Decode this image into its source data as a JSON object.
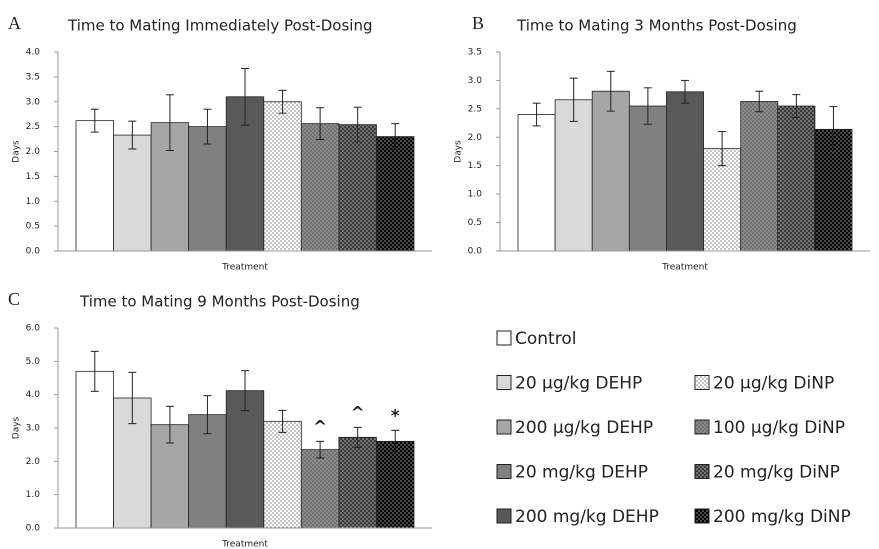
{
  "chart_data": [
    {
      "type": "bar",
      "panel": "A",
      "title": "Time to Mating Immediately Post-Dosing",
      "xlabel": "Treatment",
      "ylabel": "Days",
      "values": [
        2.62,
        2.33,
        2.58,
        2.5,
        3.1,
        3.0,
        2.56,
        2.54,
        2.3
      ],
      "errors": [
        0.23,
        0.28,
        0.56,
        0.35,
        0.57,
        0.23,
        0.32,
        0.35,
        0.26
      ],
      "ylim": [
        0,
        4
      ],
      "yticks": [
        {
          "value": 0,
          "label": "0.0"
        },
        {
          "value": 0.5,
          "label": "0.5"
        },
        {
          "value": 1,
          "label": "1.0"
        },
        {
          "value": 1.5,
          "label": "1.5"
        },
        {
          "value": 2,
          "label": "2.0"
        },
        {
          "value": 2.5,
          "label": "2.5"
        },
        {
          "value": 3,
          "label": "3.0"
        },
        {
          "value": 3.5,
          "label": "3.5"
        },
        {
          "value": 4,
          "label": "4.0"
        }
      ]
    },
    {
      "type": "bar",
      "panel": "B",
      "title": "Time to Mating 3 Months Post-Dosing",
      "xlabel": "Treatment",
      "ylabel": "Days",
      "values": [
        2.4,
        2.66,
        2.81,
        2.55,
        2.8,
        1.8,
        2.63,
        2.55,
        2.14
      ],
      "errors": [
        0.2,
        0.38,
        0.35,
        0.32,
        0.2,
        0.3,
        0.18,
        0.2,
        0.4
      ],
      "ylim": [
        0,
        3.5
      ],
      "yticks": [
        {
          "value": 0,
          "label": "0.0"
        },
        {
          "value": 0.5,
          "label": "0.5"
        },
        {
          "value": 1,
          "label": "1.0"
        },
        {
          "value": 1.5,
          "label": "1.5"
        },
        {
          "value": 2,
          "label": "2.0"
        },
        {
          "value": 2.5,
          "label": "2.5"
        },
        {
          "value": 3,
          "label": "3.0"
        },
        {
          "value": 3.5,
          "label": "3.5"
        }
      ]
    },
    {
      "type": "bar",
      "panel": "C",
      "title": "Time to Mating 9 Months Post-Dosing",
      "xlabel": "Treatment",
      "ylabel": "Days",
      "values": [
        4.7,
        3.9,
        3.1,
        3.4,
        4.12,
        3.2,
        2.35,
        2.72,
        2.6
      ],
      "errors": [
        0.6,
        0.77,
        0.55,
        0.57,
        0.6,
        0.33,
        0.25,
        0.3,
        0.33
      ],
      "annotations": [
        {
          "index": 6,
          "text": "^"
        },
        {
          "index": 7,
          "text": "^"
        },
        {
          "index": 8,
          "text": "*"
        }
      ],
      "ylim": [
        0,
        6
      ],
      "yticks": [
        {
          "value": 0,
          "label": "0.0"
        },
        {
          "value": 1,
          "label": "1.0"
        },
        {
          "value": 2,
          "label": "2.0"
        },
        {
          "value": 3,
          "label": "3.0"
        },
        {
          "value": 4,
          "label": "4.0"
        },
        {
          "value": 5,
          "label": "5.0"
        },
        {
          "value": 6,
          "label": "6.0"
        }
      ]
    }
  ],
  "legend": {
    "entries": [
      {
        "name": "Control",
        "color": "#ffffff",
        "pattern": "solid"
      },
      {
        "name": "20 µg/kg DEHP",
        "color": "#d9d9d9",
        "pattern": "solid"
      },
      {
        "name": "200 µg/kg DEHP",
        "color": "#a6a6a6",
        "pattern": "solid"
      },
      {
        "name": "20 mg/kg DEHP",
        "color": "#808080",
        "pattern": "solid"
      },
      {
        "name": "200 mg/kg DEHP",
        "color": "#595959",
        "pattern": "solid"
      },
      {
        "name": "20 µg/kg DiNP",
        "color": "#ffffff",
        "pattern": "dots"
      },
      {
        "name": "100 µg/kg DiNP",
        "color": "#8c8c8c",
        "pattern": "dots"
      },
      {
        "name": "20 mg/kg DiNP",
        "color": "#3a3a3a",
        "pattern": "dots"
      },
      {
        "name": "200 mg/kg DiNP",
        "color": "#000000",
        "pattern": "dots"
      }
    ]
  }
}
